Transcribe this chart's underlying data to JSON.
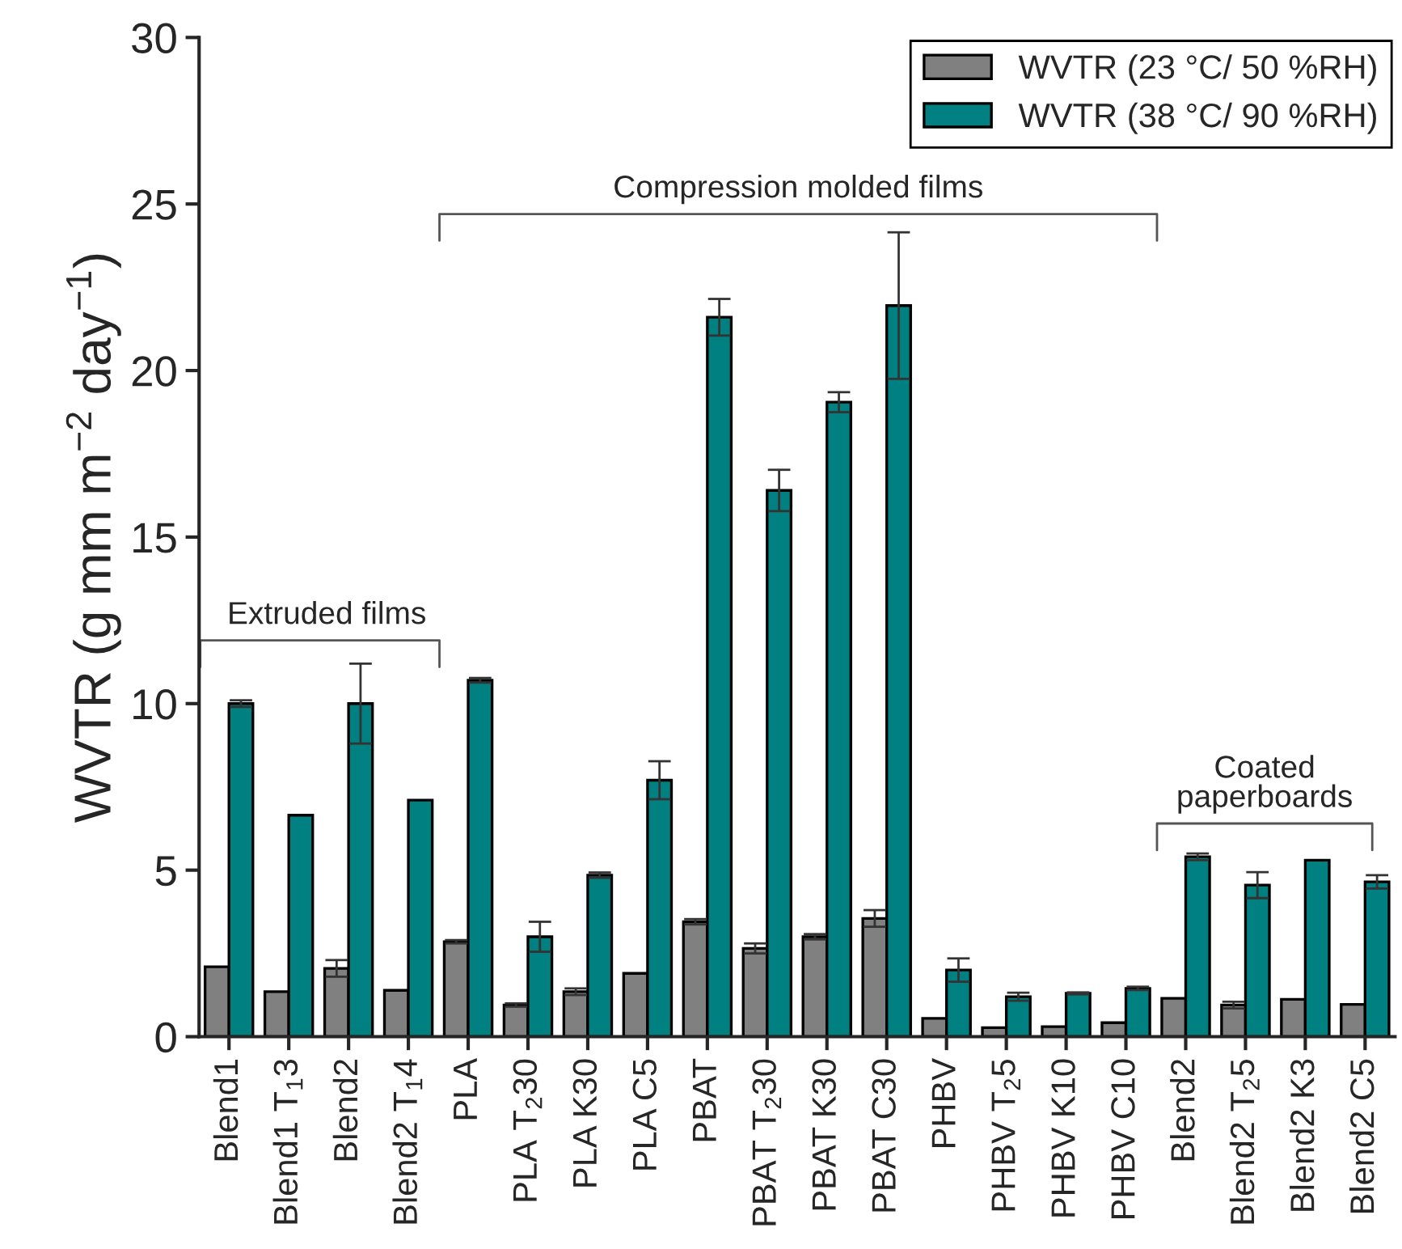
{
  "chart_data": {
    "type": "bar",
    "ylabel": "WVTR (g mm m$^{−2}$ day$^{−1}$)",
    "categories": [
      "Blend1",
      "Blend1 T$_{1}$3",
      "Blend2",
      "Blend2 T$_{1}$4",
      "PLA",
      "PLA T$_{2}$30",
      "PLA K30",
      "PLA C5",
      "PBAT",
      "PBAT T$_{2}$30",
      "PBAT K30",
      "PBAT C30",
      "PHBV",
      "PHBV T$_{2}$5",
      "PHBV K10",
      "PHBV C10",
      "Blend2",
      "Blend2 T$_{2}$5",
      "Blend2 K3",
      "Blend2 C5"
    ],
    "series": [
      {
        "name": "WVTR (23 °C/ 50 %RH)",
        "color": "#808080",
        "values": [
          2.1,
          1.35,
          2.05,
          1.39,
          2.85,
          0.95,
          1.35,
          1.9,
          3.45,
          2.65,
          3.0,
          3.55,
          0.55,
          0.27,
          0.3,
          0.42,
          1.15,
          0.95,
          1.12,
          0.97
        ],
        "errors": [
          null,
          null,
          0.25,
          null,
          0.05,
          0.05,
          0.1,
          null,
          0.08,
          0.15,
          0.08,
          0.25,
          null,
          null,
          null,
          null,
          null,
          0.1,
          null,
          null
        ]
      },
      {
        "name": "WVTR (38 °C/ 90 %RH)",
        "color": "#008080",
        "values": [
          10.0,
          6.65,
          10.0,
          7.1,
          10.7,
          3.0,
          4.85,
          7.7,
          21.6,
          16.4,
          19.05,
          21.95,
          2.0,
          1.2,
          1.3,
          1.45,
          5.4,
          4.55,
          5.3,
          4.65
        ],
        "errors": [
          0.1,
          null,
          1.2,
          null,
          0.07,
          0.45,
          0.08,
          0.57,
          0.55,
          0.62,
          0.3,
          2.2,
          0.35,
          0.12,
          0.03,
          0.05,
          0.1,
          0.39,
          null,
          0.2
        ]
      }
    ],
    "ylim": [
      0,
      30
    ],
    "yticks": [
      0,
      5,
      10,
      15,
      20,
      25,
      30
    ],
    "grid": false,
    "legend": "top right",
    "annotations": [
      "Extruded films",
      "Compression molded films",
      "Coated\npaperboards"
    ]
  }
}
